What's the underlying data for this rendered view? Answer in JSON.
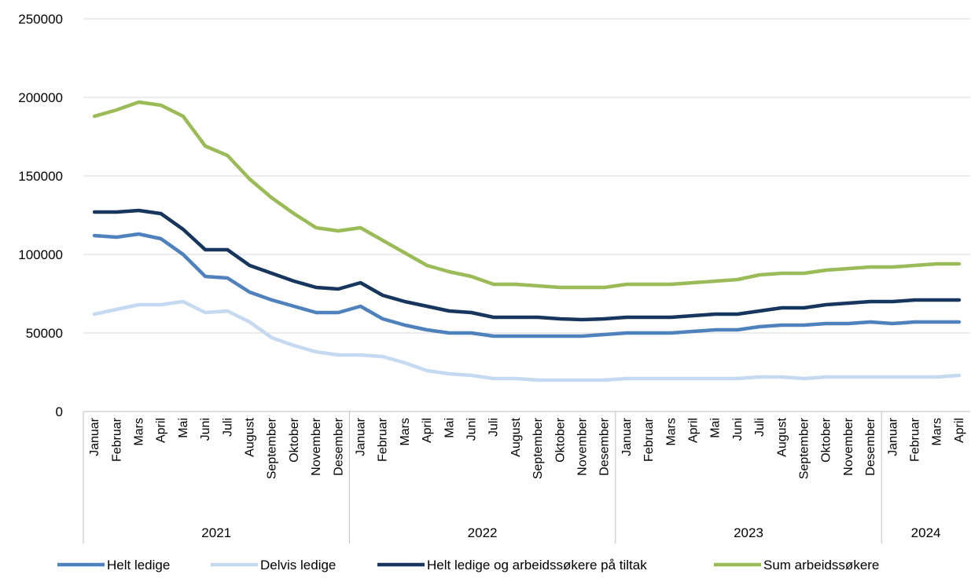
{
  "chart_data": {
    "type": "line",
    "title": "",
    "xlabel": "",
    "ylabel": "",
    "ylim": [
      0,
      250000
    ],
    "yticks": [
      0,
      50000,
      100000,
      150000,
      200000,
      250000
    ],
    "grid": true,
    "legend_position": "bottom",
    "categories": [
      "Januar",
      "Februar",
      "Mars",
      "April",
      "Mai",
      "Juni",
      "Juli",
      "August",
      "September",
      "Oktober",
      "November",
      "Desember",
      "Januar",
      "Februar",
      "Mars",
      "April",
      "Mai",
      "Juni",
      "Juli",
      "August",
      "September",
      "Oktober",
      "November",
      "Desember",
      "Januar",
      "Februar",
      "Mars",
      "April",
      "Mai",
      "Juni",
      "Juli",
      "August",
      "September",
      "Oktober",
      "November",
      "Desember",
      "Januar",
      "Februar",
      "Mars",
      "April"
    ],
    "groups": [
      {
        "label": "2021",
        "count": 12
      },
      {
        "label": "2022",
        "count": 12
      },
      {
        "label": "2023",
        "count": 12
      },
      {
        "label": "2024",
        "count": 4
      }
    ],
    "series": [
      {
        "name": "Helt ledige",
        "color": "#4f81bd",
        "values": [
          112000,
          111000,
          113000,
          110000,
          100000,
          86000,
          85000,
          76000,
          71000,
          67000,
          63000,
          63000,
          67000,
          59000,
          55000,
          52000,
          50000,
          50000,
          48000,
          48000,
          48000,
          48000,
          48000,
          49000,
          50000,
          50000,
          50000,
          51000,
          52000,
          52000,
          54000,
          55000,
          55000,
          56000,
          56000,
          57000,
          56000,
          57000,
          57000,
          57000
        ]
      },
      {
        "name": "Delvis ledige",
        "color": "#c5d9f1",
        "values": [
          62000,
          65000,
          68000,
          68000,
          70000,
          63000,
          64000,
          57000,
          47000,
          42000,
          38000,
          36000,
          36000,
          35000,
          31000,
          26000,
          24000,
          23000,
          21000,
          21000,
          20000,
          20000,
          20000,
          20000,
          21000,
          21000,
          21000,
          21000,
          21000,
          21000,
          22000,
          22000,
          21000,
          22000,
          22000,
          22000,
          22000,
          22000,
          22000,
          23000
        ]
      },
      {
        "name": "Helt ledige og arbeidssøkere på tiltak",
        "color": "#17365d",
        "values": [
          127000,
          127000,
          128000,
          126000,
          116000,
          103000,
          103000,
          93000,
          88000,
          83000,
          79000,
          78000,
          82000,
          74000,
          70000,
          67000,
          64000,
          63000,
          60000,
          60000,
          60000,
          59000,
          58500,
          59000,
          60000,
          60000,
          60000,
          61000,
          62000,
          62000,
          64000,
          66000,
          66000,
          68000,
          69000,
          70000,
          70000,
          71000,
          71000,
          71000
        ]
      },
      {
        "name": "Sum arbeidssøkere",
        "color": "#9bbb59",
        "values": [
          188000,
          192000,
          197000,
          195000,
          188000,
          169000,
          163000,
          148000,
          136000,
          126000,
          117000,
          115000,
          117000,
          109000,
          101000,
          93000,
          89000,
          86000,
          81000,
          81000,
          80000,
          79000,
          79000,
          79000,
          81000,
          81000,
          81000,
          82000,
          83000,
          84000,
          87000,
          88000,
          88000,
          90000,
          91000,
          92000,
          92000,
          93000,
          94000,
          94000
        ]
      }
    ]
  }
}
